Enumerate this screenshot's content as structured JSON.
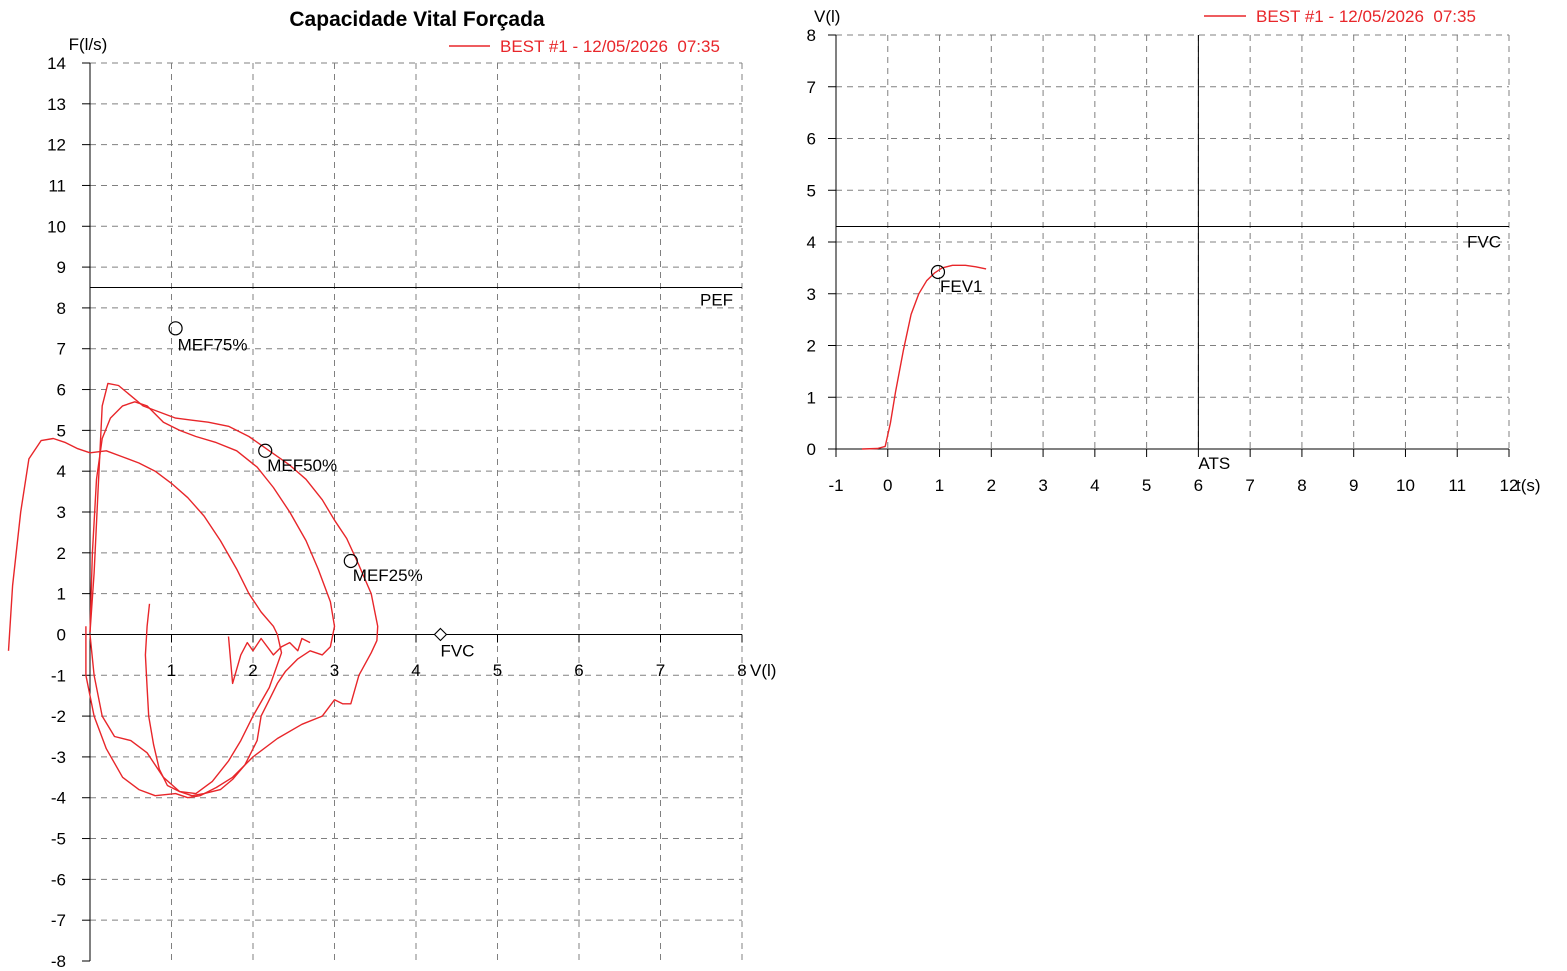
{
  "colors": {
    "curve": "#e8262a",
    "axis": "#000000",
    "grid": "#808080"
  },
  "chart_data": [
    {
      "type": "line",
      "title": "Capacidade Vital Forçada",
      "xlabel": "V(l)",
      "ylabel": "F(l/s)",
      "xlim": [
        0,
        8
      ],
      "ylim": [
        -8,
        14
      ],
      "xticks": [
        1,
        2,
        3,
        4,
        5,
        6,
        7,
        8
      ],
      "yticks": [
        14,
        13,
        12,
        11,
        10,
        9,
        8,
        7,
        6,
        5,
        4,
        3,
        2,
        1,
        0,
        -1,
        -2,
        -3,
        -4,
        -5,
        -6,
        -7,
        -8
      ],
      "grid": true,
      "legend": {
        "position": "top-right",
        "label": "BEST #1 - 12/05/2026  07:35"
      },
      "reference_lines": [
        {
          "axis": "y",
          "value": 8.5,
          "label": "PEF"
        }
      ],
      "markers": [
        {
          "label": "MEF75%",
          "x": 1.05,
          "y": 7.5,
          "shape": "circle"
        },
        {
          "label": "MEF50%",
          "x": 2.15,
          "y": 4.5,
          "shape": "circle"
        },
        {
          "label": "MEF25%",
          "x": 3.2,
          "y": 1.8,
          "shape": "circle"
        },
        {
          "label": "FVC",
          "x": 4.3,
          "y": 0,
          "shape": "diamond"
        }
      ],
      "series": [
        {
          "name": "BEST #1 - 12/05/2026  07:35",
          "traces": [
            [
              [
                -1.0,
                -0.4
              ],
              [
                -0.95,
                1.2
              ],
              [
                -0.85,
                3.0
              ],
              [
                -0.75,
                4.3
              ],
              [
                -0.6,
                4.75
              ],
              [
                -0.45,
                4.8
              ],
              [
                -0.3,
                4.7
              ],
              [
                -0.15,
                4.55
              ],
              [
                0,
                4.45
              ],
              [
                0.2,
                4.5
              ],
              [
                0.4,
                4.35
              ],
              [
                0.6,
                4.2
              ],
              [
                0.8,
                4.0
              ],
              [
                1.0,
                3.7
              ],
              [
                1.2,
                3.35
              ],
              [
                1.4,
                2.9
              ],
              [
                1.6,
                2.3
              ],
              [
                1.8,
                1.6
              ],
              [
                1.95,
                1.0
              ],
              [
                2.1,
                0.55
              ],
              [
                2.25,
                0.2
              ],
              [
                2.3,
                0
              ],
              [
                2.35,
                -0.45
              ],
              [
                2.2,
                -1.3
              ],
              [
                2.0,
                -2.0
              ],
              [
                1.85,
                -2.6
              ],
              [
                1.7,
                -3.1
              ],
              [
                1.5,
                -3.6
              ],
              [
                1.3,
                -3.9
              ],
              [
                1.1,
                -3.85
              ],
              [
                0.95,
                -3.7
              ],
              [
                0.85,
                -3.3
              ],
              [
                0.78,
                -2.7
              ],
              [
                0.72,
                -2.0
              ],
              [
                0.7,
                -1.3
              ],
              [
                0.68,
                -0.5
              ],
              [
                0.7,
                0.2
              ],
              [
                0.73,
                0.75
              ]
            ],
            [
              [
                0,
                0.05
              ],
              [
                0.05,
                1.5
              ],
              [
                0.1,
                3.6
              ],
              [
                0.15,
                5.6
              ],
              [
                0.22,
                6.15
              ],
              [
                0.35,
                6.1
              ],
              [
                0.5,
                5.85
              ],
              [
                0.65,
                5.6
              ],
              [
                0.85,
                5.45
              ],
              [
                1.05,
                5.3
              ],
              [
                1.25,
                5.25
              ],
              [
                1.45,
                5.2
              ],
              [
                1.7,
                5.1
              ],
              [
                1.95,
                4.85
              ],
              [
                2.2,
                4.5
              ],
              [
                2.45,
                4.15
              ],
              [
                2.65,
                3.8
              ],
              [
                2.85,
                3.3
              ],
              [
                3.0,
                2.8
              ],
              [
                3.15,
                2.35
              ],
              [
                3.3,
                1.7
              ],
              [
                3.45,
                1.0
              ],
              [
                3.53,
                0.2
              ],
              [
                3.52,
                -0.15
              ],
              [
                3.45,
                -0.45
              ],
              [
                3.3,
                -1.0
              ],
              [
                3.2,
                -1.7
              ],
              [
                3.1,
                -1.7
              ],
              [
                3.0,
                -1.6
              ],
              [
                2.85,
                -2.0
              ],
              [
                2.6,
                -2.2
              ],
              [
                2.3,
                -2.55
              ],
              [
                2.0,
                -3.0
              ],
              [
                1.75,
                -3.5
              ],
              [
                1.55,
                -3.75
              ],
              [
                1.35,
                -3.95
              ],
              [
                1.2,
                -4.0
              ],
              [
                1.05,
                -3.9
              ],
              [
                0.8,
                -3.95
              ],
              [
                0.6,
                -3.8
              ],
              [
                0.4,
                -3.5
              ],
              [
                0.2,
                -2.8
              ],
              [
                0.05,
                -2.0
              ],
              [
                -0.05,
                -1.0
              ],
              [
                -0.05,
                0.2
              ]
            ],
            [
              [
                0,
                0.05
              ],
              [
                0.03,
                2.0
              ],
              [
                0.08,
                3.8
              ],
              [
                0.15,
                4.8
              ],
              [
                0.25,
                5.3
              ],
              [
                0.4,
                5.6
              ],
              [
                0.55,
                5.7
              ],
              [
                0.7,
                5.6
              ],
              [
                0.9,
                5.2
              ],
              [
                1.1,
                5.0
              ],
              [
                1.3,
                4.85
              ],
              [
                1.55,
                4.7
              ],
              [
                1.8,
                4.5
              ],
              [
                2.05,
                4.1
              ],
              [
                2.25,
                3.6
              ],
              [
                2.45,
                3.0
              ],
              [
                2.65,
                2.3
              ],
              [
                2.8,
                1.6
              ],
              [
                2.95,
                0.8
              ],
              [
                3.0,
                0.2
              ],
              [
                2.95,
                -0.3
              ],
              [
                2.85,
                -0.5
              ],
              [
                2.7,
                -0.4
              ],
              [
                2.55,
                -0.6
              ],
              [
                2.4,
                -0.9
              ],
              [
                2.3,
                -1.2
              ],
              [
                2.2,
                -1.6
              ],
              [
                2.1,
                -2.0
              ],
              [
                2.05,
                -2.6
              ],
              [
                1.9,
                -3.2
              ],
              [
                1.75,
                -3.55
              ],
              [
                1.6,
                -3.8
              ],
              [
                1.4,
                -3.9
              ],
              [
                1.25,
                -3.95
              ],
              [
                1.1,
                -3.85
              ],
              [
                0.9,
                -3.5
              ],
              [
                0.7,
                -2.9
              ],
              [
                0.5,
                -2.6
              ],
              [
                0.3,
                -2.5
              ],
              [
                0.15,
                -2.0
              ],
              [
                0.05,
                -1.0
              ],
              [
                0,
                0
              ]
            ],
            [
              [
                1.7,
                -0.05
              ],
              [
                1.75,
                -1.2
              ],
              [
                1.85,
                -0.5
              ],
              [
                1.93,
                -0.2
              ],
              [
                2.0,
                -0.4
              ],
              [
                2.1,
                -0.1
              ],
              [
                2.25,
                -0.5
              ],
              [
                2.35,
                -0.3
              ],
              [
                2.45,
                -0.2
              ],
              [
                2.55,
                -0.4
              ],
              [
                2.6,
                -0.1
              ],
              [
                2.7,
                -0.2
              ]
            ]
          ]
        }
      ]
    },
    {
      "type": "line",
      "title": "",
      "xlabel": "t(s)",
      "ylabel": "V(l)",
      "xlim": [
        -1,
        12
      ],
      "ylim": [
        0,
        8
      ],
      "xticks": [
        -1,
        0,
        1,
        2,
        3,
        4,
        5,
        6,
        7,
        8,
        9,
        10,
        11,
        12
      ],
      "yticks": [
        8,
        7,
        6,
        5,
        4,
        3,
        2,
        1,
        0
      ],
      "grid": true,
      "legend": {
        "position": "top-right",
        "label": "BEST #1 - 12/05/2026  07:35"
      },
      "reference_lines": [
        {
          "axis": "y",
          "value": 4.3,
          "label": "FVC"
        },
        {
          "axis": "x",
          "value": 6,
          "label": "ATS"
        }
      ],
      "markers": [
        {
          "label": "FEV1",
          "x": 0.97,
          "y": 3.42,
          "shape": "circle"
        }
      ],
      "series": [
        {
          "name": "BEST #1 - 12/05/2026  07:35",
          "traces": [
            [
              [
                -0.5,
                0
              ],
              [
                -0.2,
                0.01
              ],
              [
                -0.05,
                0.05
              ],
              [
                0.05,
                0.5
              ],
              [
                0.15,
                1.1
              ],
              [
                0.3,
                1.9
              ],
              [
                0.45,
                2.6
              ],
              [
                0.6,
                3.0
              ],
              [
                0.75,
                3.25
              ],
              [
                0.9,
                3.4
              ],
              [
                1.05,
                3.5
              ],
              [
                1.25,
                3.55
              ],
              [
                1.5,
                3.55
              ],
              [
                1.7,
                3.52
              ],
              [
                1.9,
                3.48
              ]
            ]
          ]
        }
      ]
    }
  ]
}
